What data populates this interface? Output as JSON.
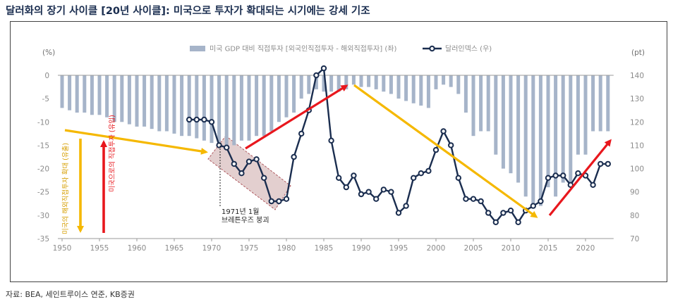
{
  "title": "달러화의 장기 사이클 [20년 사이클]: 미국으로 투자가 확대되는 시기에는 강세 기조",
  "source": "자료: BEA, 세인트루이스 연준, KB증권",
  "colors": {
    "bar": "#a6b4c9",
    "line": "#1a2d4f",
    "arrow_up": "#e8171d",
    "arrow_down": "#f5b800",
    "box_fill": "#c8a0a0",
    "box_border": "#b05a60"
  },
  "chart_data": {
    "type": "bar+line",
    "x_ticks": [
      1950,
      1955,
      1960,
      1965,
      1970,
      1975,
      1980,
      1985,
      1990,
      1995,
      2000,
      2005,
      2010,
      2015,
      2020
    ],
    "left_axis": {
      "unit": "(%)",
      "range": [
        -35,
        0
      ],
      "ticks": [
        0,
        -5,
        -10,
        -15,
        -20,
        -25,
        -30,
        -35
      ]
    },
    "right_axis": {
      "unit": "(pt)",
      "range": [
        70,
        140
      ],
      "ticks": [
        140,
        130,
        120,
        110,
        100,
        90,
        80,
        70
      ]
    },
    "legend": {
      "bar_label": "미국 GDP 대비 직접투자 [외국인직접투자 - 해외직접투자] (좌)",
      "line_label": "달러인덱스 (우)"
    },
    "series": [
      {
        "name": "미국 GDP 대비 직접투자 [외국인직접투자 - 해외직접투자] (좌)",
        "type": "bar",
        "x": [
          1950,
          1951,
          1952,
          1953,
          1954,
          1955,
          1956,
          1957,
          1958,
          1959,
          1960,
          1961,
          1962,
          1963,
          1964,
          1965,
          1966,
          1967,
          1968,
          1969,
          1970,
          1971,
          1972,
          1973,
          1974,
          1975,
          1976,
          1977,
          1978,
          1979,
          1980,
          1981,
          1982,
          1983,
          1984,
          1985,
          1986,
          1987,
          1988,
          1989,
          1990,
          1991,
          1992,
          1993,
          1994,
          1995,
          1996,
          1997,
          1998,
          1999,
          2000,
          2001,
          2002,
          2003,
          2004,
          2005,
          2006,
          2007,
          2008,
          2009,
          2010,
          2011,
          2012,
          2013,
          2014,
          2015,
          2016,
          2017,
          2018,
          2019,
          2020,
          2021,
          2022,
          2023
        ],
        "values": [
          -7,
          -7.5,
          -8,
          -8,
          -8.5,
          -8.5,
          -9,
          -10,
          -10,
          -10.5,
          -11,
          -11,
          -11.5,
          -12,
          -12,
          -12.5,
          -13,
          -13,
          -13.5,
          -14,
          -14.5,
          -15,
          -15,
          -15,
          -14,
          -14,
          -13,
          -13,
          -12,
          -10,
          -9,
          -8,
          -5,
          -4,
          -3,
          -3.5,
          -3.5,
          -3.5,
          -3,
          -2,
          -2.5,
          -2.5,
          -3,
          -3.5,
          -4,
          -5,
          -5.5,
          -6,
          -6.5,
          -7,
          -3,
          -2,
          -2.5,
          -4,
          -8,
          -13,
          -12,
          -12,
          -17,
          -20,
          -21,
          -23,
          -26,
          -28,
          -28,
          -24,
          -26,
          -23,
          -23,
          -17,
          -17,
          -12,
          -12,
          -12
        ]
      },
      {
        "name": "달러인덱스 (우)",
        "type": "line",
        "x": [
          1967,
          1968,
          1969,
          1970,
          1971,
          1972,
          1973,
          1974,
          1975,
          1976,
          1977,
          1978,
          1979,
          1980,
          1981,
          1982,
          1983,
          1984,
          1985,
          1986,
          1987,
          1988,
          1989,
          1990,
          1991,
          1992,
          1993,
          1994,
          1995,
          1996,
          1997,
          1998,
          1999,
          2000,
          2001,
          2002,
          2003,
          2004,
          2005,
          2006,
          2007,
          2008,
          2009,
          2010,
          2011,
          2012,
          2013,
          2014,
          2015,
          2016,
          2017,
          2018,
          2019,
          2020,
          2021,
          2022,
          2023
        ],
        "values": [
          121,
          121,
          121,
          120,
          110,
          109,
          102,
          98,
          103,
          104,
          96,
          86,
          86,
          87,
          105,
          115,
          125,
          140,
          143,
          112,
          96,
          92,
          97,
          89,
          90,
          87,
          91,
          90,
          81,
          84,
          96,
          98,
          99,
          108,
          116,
          110,
          96,
          87,
          87,
          86,
          81,
          77,
          81,
          82,
          77,
          82,
          84,
          86,
          96,
          97,
          97,
          93,
          98,
          97,
          93,
          102,
          102
        ]
      }
    ],
    "annotations": {
      "event_label_line1": "1971년 1월",
      "event_label_line2": "브레튼우즈 붕괴",
      "up_arrow_label": "미국으로의 직접투자 (유입)",
      "down_arrow_label": "미국의 해외직접투자 확대 (유출)"
    }
  }
}
